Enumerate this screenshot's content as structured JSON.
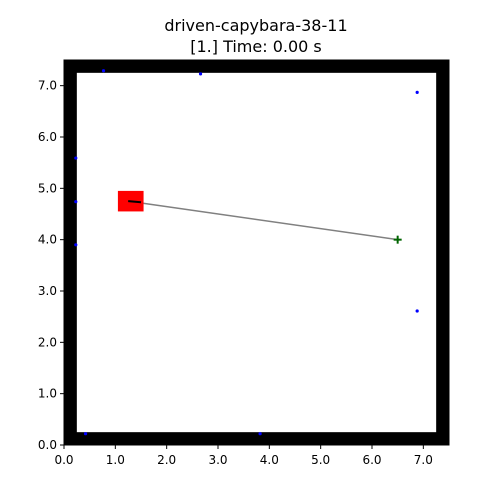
{
  "title_line1": "driven-capybara-38-11",
  "title_line2": "[1.] Time: 0.00 s",
  "chart_data": {
    "type": "scatter",
    "xlim": [
      0.0,
      7.5
    ],
    "ylim": [
      0.0,
      7.5
    ],
    "xticks": [
      "0.0",
      "1.0",
      "2.0",
      "3.0",
      "4.0",
      "5.0",
      "6.0",
      "7.0"
    ],
    "yticks": [
      "0.0",
      "1.0",
      "2.0",
      "3.0",
      "4.0",
      "5.0",
      "6.0",
      "7.0"
    ],
    "grid": false,
    "wall": {
      "outer": [
        0.0,
        7.5
      ],
      "inner": [
        0.25,
        7.25
      ],
      "color": "#000000"
    },
    "obstacle": {
      "x": 1.05,
      "y": 4.55,
      "width": 0.5,
      "height": 0.4,
      "color": "#ff0000"
    },
    "heading": {
      "x1": 1.25,
      "y1": 4.75,
      "x2": 1.5,
      "y2": 4.73,
      "color": "#000000"
    },
    "path": {
      "x1": 1.25,
      "y1": 4.75,
      "x2": 6.5,
      "y2": 4.0,
      "color": "#808080"
    },
    "goal": {
      "x": 6.5,
      "y": 4.0,
      "color": "#006400"
    },
    "points": {
      "color": "#0000ff",
      "x": [
        0.77,
        2.66,
        6.88,
        0.23,
        0.23,
        0.23,
        6.88,
        0.42,
        3.82
      ],
      "y": [
        7.29,
        7.23,
        6.87,
        5.59,
        4.74,
        3.9,
        2.61,
        0.22,
        0.22
      ]
    }
  }
}
